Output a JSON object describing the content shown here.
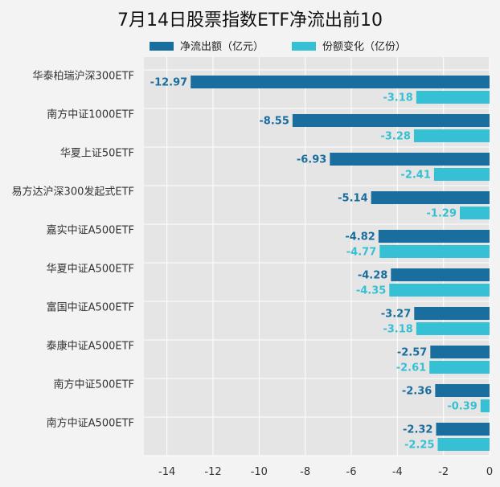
{
  "chart_data": {
    "type": "bar",
    "orientation": "horizontal",
    "title": "7月14日股票指数ETF净流出前10",
    "categories": [
      "华泰柏瑞沪深300ETF",
      "南方中证1000ETF",
      "华夏上证50ETF",
      "易方达沪深300发起式ETF",
      "嘉实中证A500ETF",
      "华夏中证A500ETF",
      "富国中证A500ETF",
      "泰康中证A500ETF",
      "南方中证500ETF",
      "南方中证A500ETF"
    ],
    "series": [
      {
        "name": "净流出额（亿元）",
        "color": "#1a6e9e",
        "values": [
          -12.97,
          -8.55,
          -6.93,
          -5.14,
          -4.82,
          -4.28,
          -3.27,
          -2.57,
          -2.36,
          -2.32
        ],
        "labels": [
          "-12.97",
          "-8.55",
          "-6.93",
          "-5.14",
          "-4.82",
          "-4.28",
          "-3.27",
          "-2.57",
          "-2.36",
          "-2.32"
        ]
      },
      {
        "name": "份额变化（亿份）",
        "color": "#36c0d4",
        "values": [
          -3.18,
          -3.28,
          -2.41,
          -1.29,
          -4.77,
          -4.35,
          -3.18,
          -2.61,
          -0.39,
          -2.25
        ],
        "labels": [
          "-3.18",
          "-3.28",
          "-2.41",
          "-1.29",
          "-4.77",
          "-4.35",
          "-3.18",
          "-2.61",
          "-0.39",
          "-2.25"
        ]
      }
    ],
    "xticks": [
      -14,
      -12,
      -10,
      -8,
      -6,
      -4,
      -2,
      0
    ],
    "xtick_labels": [
      "-14",
      "-12",
      "-10",
      "-8",
      "-6",
      "-4",
      "-2",
      "0"
    ],
    "xlim": [
      -15,
      0
    ],
    "grid": true,
    "legend_position": "top"
  },
  "colors": {
    "background": "#f3f3f3",
    "plot_background": "#e5e5e5",
    "grid": "#ffffff"
  }
}
